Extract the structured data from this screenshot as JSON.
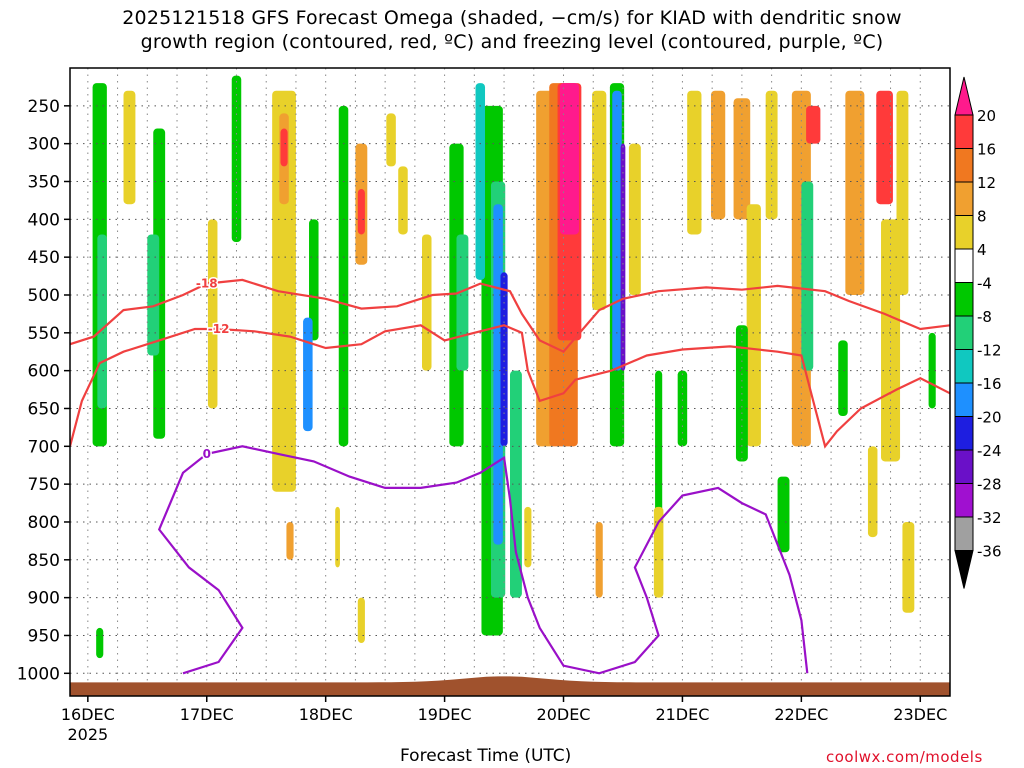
{
  "chart_data": {
    "type": "heatmap",
    "title_line1": "2025121518 GFS Forecast Omega (shaded, −cm/s) for KIAD with dendritic snow",
    "title_line2": "growth region (contoured, red, ºC) and freezing level (contoured, purple, ºC)",
    "xlabel": "Forecast Time (UTC)",
    "ylabel": "",
    "credit": "coolwx.com/models",
    "x_ticks": [
      "16DEC",
      "17DEC",
      "18DEC",
      "19DEC",
      "20DEC",
      "21DEC",
      "22DEC",
      "23DEC"
    ],
    "x_year": "2025",
    "x_range_days": [
      -0.15,
      7.25
    ],
    "y_ticks": [
      250,
      300,
      350,
      400,
      450,
      500,
      550,
      600,
      650,
      700,
      750,
      800,
      850,
      900,
      950,
      1000
    ],
    "y_range_hpa": [
      200,
      1030
    ],
    "grid": true,
    "colorbar": {
      "levels": [
        20,
        16,
        12,
        8,
        4,
        -4,
        -8,
        -12,
        -16,
        -20,
        -24,
        -28,
        -32,
        -36
      ],
      "colors": [
        "#ff1a8c",
        "#ff3a3a",
        "#f07820",
        "#f0a030",
        "#e8d12a",
        "#ffffff",
        "#00c800",
        "#22d078",
        "#10c8c0",
        "#1e90ff",
        "#1e1ee0",
        "#6a10c8",
        "#a010d0",
        "#a0a0a0",
        "#000000"
      ],
      "position": "right"
    },
    "contours": {
      "dgz_minus18": {
        "color": "#f04040",
        "label": "-18",
        "points": [
          [
            -0.15,
            565
          ],
          [
            0.05,
            555
          ],
          [
            0.3,
            520
          ],
          [
            0.55,
            515
          ],
          [
            0.8,
            500
          ],
          [
            1.0,
            485
          ],
          [
            1.3,
            480
          ],
          [
            1.6,
            495
          ],
          [
            2.0,
            505
          ],
          [
            2.3,
            518
          ],
          [
            2.6,
            515
          ],
          [
            2.9,
            500
          ],
          [
            3.1,
            498
          ],
          [
            3.3,
            485
          ],
          [
            3.55,
            495
          ],
          [
            3.65,
            525
          ],
          [
            3.8,
            560
          ],
          [
            4.0,
            575
          ],
          [
            4.3,
            520
          ],
          [
            4.5,
            505
          ],
          [
            4.8,
            495
          ],
          [
            5.2,
            490
          ],
          [
            5.5,
            493
          ],
          [
            5.8,
            488
          ],
          [
            6.2,
            495
          ],
          [
            6.4,
            508
          ],
          [
            6.7,
            525
          ],
          [
            7.0,
            545
          ],
          [
            7.25,
            540
          ]
        ]
      },
      "dgz_minus12": {
        "color": "#f04040",
        "label": "-12",
        "points": [
          [
            -0.15,
            700
          ],
          [
            -0.05,
            640
          ],
          [
            0.1,
            590
          ],
          [
            0.3,
            575
          ],
          [
            0.6,
            560
          ],
          [
            0.9,
            545
          ],
          [
            1.1,
            545
          ],
          [
            1.4,
            548
          ],
          [
            1.7,
            555
          ],
          [
            2.0,
            570
          ],
          [
            2.3,
            565
          ],
          [
            2.5,
            548
          ],
          [
            2.8,
            540
          ],
          [
            3.0,
            560
          ],
          [
            3.2,
            552
          ],
          [
            3.5,
            540
          ],
          [
            3.65,
            550
          ],
          [
            3.7,
            600
          ],
          [
            3.8,
            640
          ],
          [
            4.0,
            630
          ],
          [
            4.1,
            612
          ],
          [
            4.4,
            600
          ],
          [
            4.7,
            580
          ],
          [
            5.0,
            572
          ],
          [
            5.4,
            568
          ],
          [
            5.8,
            575
          ],
          [
            6.0,
            580
          ],
          [
            6.1,
            640
          ],
          [
            6.2,
            700
          ],
          [
            6.3,
            680
          ],
          [
            6.5,
            650
          ],
          [
            6.8,
            625
          ],
          [
            7.0,
            610
          ],
          [
            7.25,
            630
          ]
        ]
      },
      "freezing_0c": {
        "color": "#9a10c8",
        "label": "0",
        "points": [
          [
            0.8,
            1000
          ],
          [
            1.1,
            985
          ],
          [
            1.3,
            940
          ],
          [
            1.1,
            890
          ],
          [
            0.85,
            860
          ],
          [
            0.6,
            810
          ],
          [
            0.8,
            735
          ],
          [
            1.0,
            710
          ],
          [
            1.3,
            700
          ],
          [
            1.6,
            710
          ],
          [
            1.9,
            720
          ],
          [
            2.2,
            740
          ],
          [
            2.5,
            755
          ],
          [
            2.8,
            755
          ],
          [
            3.1,
            748
          ],
          [
            3.3,
            735
          ],
          [
            3.5,
            715
          ],
          [
            3.55,
            770
          ],
          [
            3.6,
            840
          ],
          [
            3.7,
            900
          ],
          [
            3.8,
            940
          ],
          [
            4.0,
            990
          ],
          [
            4.3,
            1000
          ],
          [
            4.6,
            985
          ],
          [
            4.8,
            950
          ],
          [
            4.7,
            900
          ],
          [
            4.6,
            860
          ],
          [
            4.8,
            800
          ],
          [
            5.0,
            765
          ],
          [
            5.3,
            755
          ],
          [
            5.5,
            775
          ],
          [
            5.7,
            790
          ],
          [
            5.9,
            870
          ],
          [
            6.0,
            930
          ],
          [
            6.05,
            1000
          ]
        ]
      }
    }
  }
}
